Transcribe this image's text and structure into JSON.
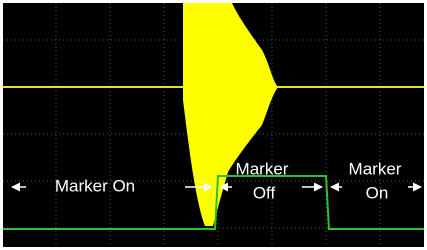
{
  "annotations": [
    [
      "Marker On"
    ],
    [
      "Marker",
      "Off"
    ],
    [
      "Marker",
      "On"
    ]
  ]
}
